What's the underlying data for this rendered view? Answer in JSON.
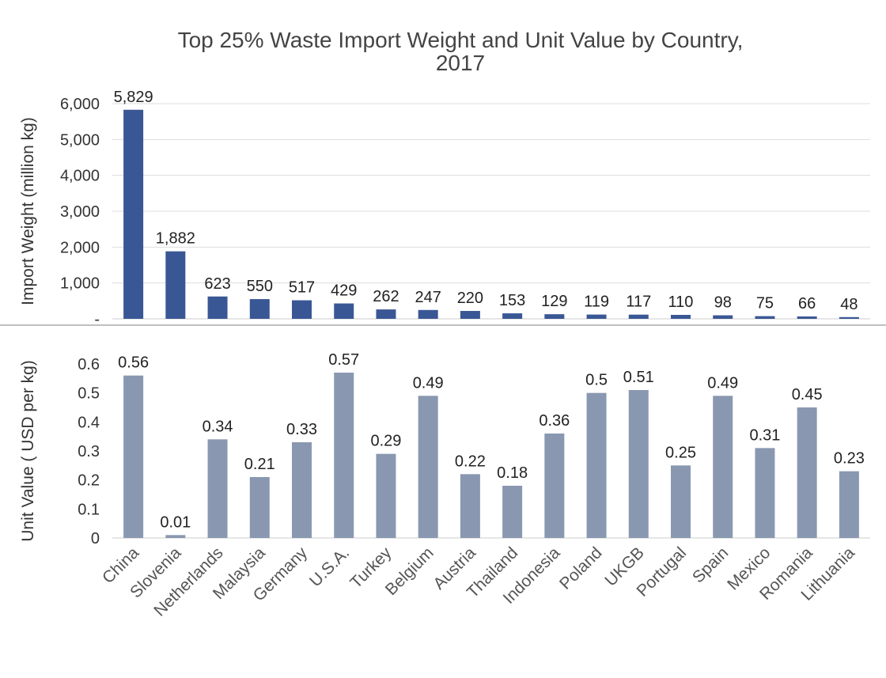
{
  "chart_data": {
    "type": "bar",
    "title": "Top 25% Waste Import Weight and Unit Value by Country,",
    "title_line2": "2017",
    "categories": [
      "China",
      "Slovenia",
      "Netherlands",
      "Malaysia",
      "Germany",
      "U.S.A.",
      "Turkey",
      "Belgium",
      "Austria",
      "Thailand",
      "Indonesia",
      "Poland",
      "UKGB",
      "Portugal",
      "Spain",
      "Mexico",
      "Romania",
      "Lithuania"
    ],
    "panels": [
      {
        "id": "weight",
        "ylabel": "Import Weight (million kg)",
        "ylim": [
          0,
          6000
        ],
        "yticks": [
          0,
          1000,
          2000,
          3000,
          4000,
          5000,
          6000
        ],
        "ytick_labels": [
          "-",
          "1,000",
          "2,000",
          "3,000",
          "4,000",
          "5,000",
          "6,000"
        ],
        "grid": true,
        "color": "#3a5795",
        "values": [
          5829,
          1882,
          623,
          550,
          517,
          429,
          262,
          247,
          220,
          153,
          129,
          119,
          117,
          110,
          98,
          75,
          66,
          48
        ],
        "labels": [
          "5,829",
          "1,882",
          "623",
          "550",
          "517",
          "429",
          "262",
          "247",
          "220",
          "153",
          "129",
          "119",
          "117",
          "110",
          "98",
          "75",
          "66",
          "48"
        ]
      },
      {
        "id": "unit-value",
        "ylabel": "Unit Value ( USD per kg)",
        "ylim": [
          0,
          0.6
        ],
        "yticks": [
          0,
          0.1,
          0.2,
          0.3,
          0.4,
          0.5,
          0.6
        ],
        "ytick_labels": [
          "0",
          "0.1",
          "0.2",
          "0.3",
          "0.4",
          "0.5",
          "0.6"
        ],
        "grid": false,
        "color": "#8998b0",
        "values": [
          0.56,
          0.01,
          0.34,
          0.21,
          0.33,
          0.57,
          0.29,
          0.49,
          0.22,
          0.18,
          0.36,
          0.5,
          0.51,
          0.25,
          0.49,
          0.31,
          0.45,
          0.23
        ],
        "labels": [
          "0.56",
          "0.01",
          "0.34",
          "0.21",
          "0.33",
          "0.57",
          "0.29",
          "0.49",
          "0.22",
          "0.18",
          "0.36",
          "0.5",
          "0.51",
          "0.25",
          "0.49",
          "0.31",
          "0.45",
          "0.23"
        ]
      }
    ]
  }
}
